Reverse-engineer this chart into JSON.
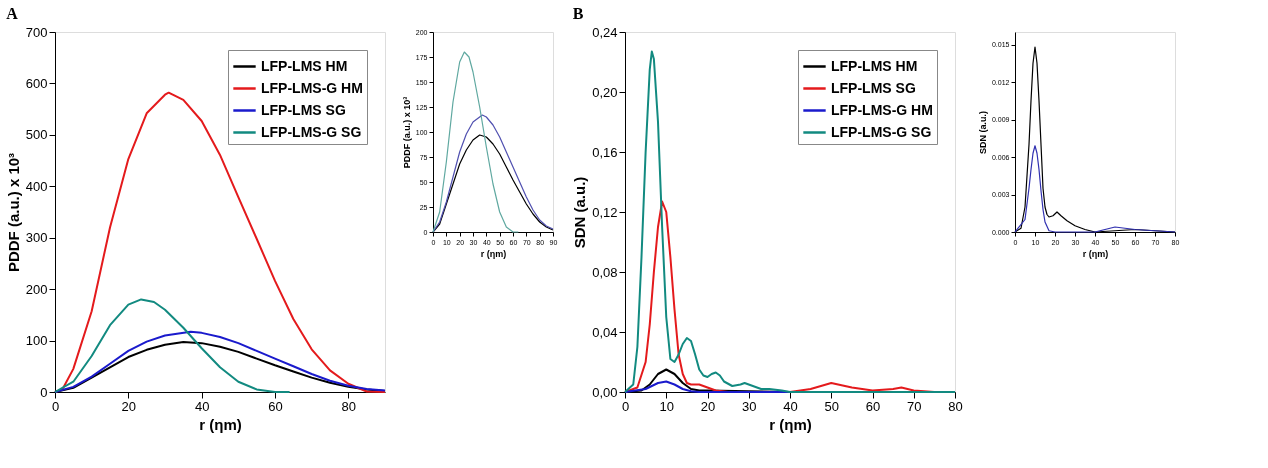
{
  "chart_data": [
    {
      "type": "line",
      "title": "A",
      "xlabel": "r (ηm)",
      "ylabel": "PDDF (a.u.) x 10³",
      "xlim": [
        0,
        90
      ],
      "xticks": [
        0,
        20,
        40,
        60,
        80
      ],
      "ylim": [
        0,
        700
      ],
      "yticks": [
        0,
        100,
        200,
        300,
        400,
        500,
        600,
        700
      ],
      "grid": false,
      "legend": "top right",
      "series": [
        {
          "name": "LFP-LMS HM",
          "color": "#000000",
          "x": [
            0,
            5,
            10,
            15,
            20,
            25,
            30,
            35,
            40,
            45,
            50,
            55,
            60,
            65,
            70,
            75,
            80,
            85,
            90
          ],
          "values": [
            0,
            8,
            28,
            48,
            68,
            82,
            92,
            97,
            95,
            88,
            78,
            65,
            52,
            40,
            28,
            18,
            10,
            5,
            2
          ]
        },
        {
          "name": "LFP-LMS-G HM",
          "color": "#e41a1c",
          "x": [
            0,
            2,
            5,
            10,
            15,
            20,
            25,
            30,
            31,
            35,
            40,
            45,
            50,
            55,
            60,
            65,
            70,
            75,
            80,
            85,
            90
          ],
          "values": [
            0,
            5,
            45,
            157,
            320,
            453,
            542,
            578,
            582,
            568,
            527,
            461,
            379,
            298,
            216,
            142,
            83,
            42,
            16,
            1,
            0
          ]
        },
        {
          "name": "LFP-LMS SG",
          "color": "#1a1acc",
          "x": [
            0,
            5,
            10,
            15,
            20,
            25,
            30,
            37,
            40,
            45,
            50,
            55,
            60,
            65,
            70,
            75,
            80,
            85,
            90
          ],
          "values": [
            0,
            10,
            30,
            55,
            80,
            98,
            110,
            117,
            115,
            107,
            95,
            80,
            65,
            50,
            35,
            22,
            12,
            6,
            3
          ]
        },
        {
          "name": "LFP-LMS-G SG",
          "color": "#128a80",
          "x": [
            0,
            5,
            10,
            15,
            20,
            23.5,
            27,
            30,
            35,
            40,
            45,
            50,
            55,
            60,
            64
          ],
          "values": [
            0,
            20,
            70,
            130,
            170,
            180,
            175,
            160,
            125,
            85,
            48,
            20,
            5,
            0,
            0
          ]
        }
      ]
    },
    {
      "type": "line",
      "xlabel": "r (ηm)",
      "ylabel": "PDDF (a.u.) x 10³",
      "xlim": [
        0,
        90
      ],
      "xticks": [
        0,
        10,
        20,
        30,
        40,
        50,
        60,
        70,
        80,
        90
      ],
      "ylim": [
        0,
        200
      ],
      "yticks": [
        0,
        25,
        50,
        75,
        100,
        125,
        150,
        175,
        200
      ],
      "grid": false,
      "series": [
        {
          "color": "#000000",
          "x": [
            0,
            5,
            10,
            15,
            20,
            25,
            30,
            35,
            40,
            45,
            50,
            55,
            60,
            65,
            70,
            75,
            80,
            85,
            90
          ],
          "values": [
            0,
            8,
            28,
            48,
            68,
            82,
            92,
            97,
            95,
            88,
            78,
            65,
            52,
            40,
            28,
            18,
            10,
            5,
            2
          ]
        },
        {
          "color": "#5050b0",
          "x": [
            0,
            5,
            10,
            15,
            20,
            25,
            30,
            37,
            40,
            45,
            50,
            55,
            60,
            65,
            70,
            75,
            80,
            85,
            90
          ],
          "values": [
            0,
            10,
            30,
            55,
            80,
            98,
            110,
            117,
            115,
            107,
            95,
            80,
            65,
            50,
            35,
            22,
            12,
            6,
            3
          ]
        },
        {
          "color": "#5fa8a0",
          "x": [
            0,
            5,
            10,
            15,
            20,
            23.5,
            27,
            30,
            35,
            40,
            45,
            50,
            55,
            60,
            64
          ],
          "values": [
            0,
            20,
            70,
            130,
            170,
            180,
            175,
            160,
            125,
            85,
            48,
            20,
            5,
            0,
            0
          ]
        }
      ]
    },
    {
      "type": "line",
      "title": "B",
      "xlabel": "r (ηm)",
      "ylabel": "SDN (a.u.)",
      "xlim": [
        0,
        80
      ],
      "xticks": [
        0,
        10,
        20,
        30,
        40,
        50,
        60,
        70,
        80
      ],
      "ylim": [
        0,
        0.24
      ],
      "yticks": [
        {
          "value": 0,
          "label": "0,00"
        },
        {
          "value": 0.04,
          "label": "0,04"
        },
        {
          "value": 0.08,
          "label": "0,08"
        },
        {
          "value": 0.12,
          "label": "0,12"
        },
        {
          "value": 0.16,
          "label": "0,16"
        },
        {
          "value": 0.2,
          "label": "0,20"
        },
        {
          "value": 0.24,
          "label": "0,24"
        }
      ],
      "grid": false,
      "legend": "top right",
      "series": [
        {
          "name": "LFP-LMS HM",
          "color": "#000000",
          "x": [
            0,
            4,
            6,
            8,
            10,
            12,
            14,
            16,
            18,
            20,
            30,
            40,
            80
          ],
          "values": [
            0,
            0.001,
            0.005,
            0.012,
            0.015,
            0.012,
            0.006,
            0.002,
            0.001,
            0.001,
            0.0005,
            0,
            0
          ]
        },
        {
          "name": "LFP-LMS SG",
          "color": "#e41a1c",
          "x": [
            0,
            3,
            5,
            6,
            7,
            8,
            9,
            10,
            11,
            12,
            13,
            14,
            15,
            16,
            18,
            20,
            22,
            25,
            40,
            45,
            50,
            55,
            60,
            65,
            67,
            70,
            75,
            80
          ],
          "values": [
            0,
            0.003,
            0.02,
            0.045,
            0.08,
            0.11,
            0.127,
            0.12,
            0.09,
            0.055,
            0.025,
            0.012,
            0.006,
            0.005,
            0.005,
            0.003,
            0.001,
            0,
            0,
            0.002,
            0.006,
            0.003,
            0.001,
            0.002,
            0.003,
            0.001,
            0,
            0
          ]
        },
        {
          "name": "LFP-LMS-G HM",
          "color": "#1a1acc",
          "x": [
            0,
            5,
            8,
            10,
            12,
            14,
            16,
            18,
            80
          ],
          "values": [
            0,
            0.002,
            0.006,
            0.007,
            0.005,
            0.002,
            0.0005,
            0,
            0
          ]
        },
        {
          "name": "LFP-LMS-G SG",
          "color": "#128a80",
          "x": [
            0,
            2,
            3,
            4,
            5,
            6,
            6.5,
            7,
            8,
            9,
            10,
            11,
            12,
            13,
            14,
            15,
            16,
            17,
            18,
            19,
            20,
            21,
            22,
            23,
            24,
            26,
            28,
            29,
            31,
            33,
            35,
            38,
            40,
            45,
            80
          ],
          "values": [
            0,
            0.005,
            0.03,
            0.09,
            0.16,
            0.215,
            0.227,
            0.222,
            0.18,
            0.11,
            0.05,
            0.022,
            0.02,
            0.025,
            0.032,
            0.036,
            0.034,
            0.025,
            0.015,
            0.011,
            0.01,
            0.012,
            0.013,
            0.011,
            0.007,
            0.004,
            0.005,
            0.006,
            0.004,
            0.002,
            0.002,
            0.001,
            0,
            0,
            0
          ]
        }
      ]
    },
    {
      "type": "line",
      "xlabel": "r (ηm)",
      "ylabel": "SDN (a.u.)",
      "xlim": [
        0,
        80
      ],
      "xticks": [
        0,
        10,
        20,
        30,
        40,
        50,
        60,
        70,
        80
      ],
      "ylim": [
        0,
        0.016
      ],
      "yticks": [
        {
          "value": 0,
          "label": "0.000"
        },
        {
          "value": 0.003,
          "label": "0.003"
        },
        {
          "value": 0.006,
          "label": "0.006"
        },
        {
          "value": 0.009,
          "label": "0.009"
        },
        {
          "value": 0.012,
          "label": "0.012"
        },
        {
          "value": 0.015,
          "label": "0.015"
        }
      ],
      "grid": false,
      "series": [
        {
          "color": "#000000",
          "x": [
            0,
            3,
            5,
            7,
            8,
            9,
            10,
            11,
            12,
            13,
            14,
            15,
            16,
            17,
            19,
            21,
            23,
            26,
            30,
            35,
            40,
            50,
            60,
            70,
            80
          ],
          "values": [
            0,
            0.0003,
            0.002,
            0.007,
            0.0105,
            0.0135,
            0.0148,
            0.0135,
            0.0105,
            0.007,
            0.0035,
            0.002,
            0.0014,
            0.0012,
            0.0013,
            0.0016,
            0.0013,
            0.0009,
            0.0005,
            0.0002,
            0,
            0.0001,
            0.0002,
            0.0001,
            0
          ]
        },
        {
          "color": "#3030b0",
          "x": [
            0,
            5,
            7,
            8,
            9,
            10,
            11,
            12,
            13,
            14,
            15,
            17,
            20,
            40,
            45,
            50,
            55,
            60,
            70,
            80
          ],
          "values": [
            0,
            0.001,
            0.0035,
            0.005,
            0.0063,
            0.0069,
            0.0063,
            0.005,
            0.0033,
            0.0018,
            0.0008,
            0.0001,
            0,
            0,
            0.0002,
            0.0004,
            0.0003,
            0.0002,
            0.0001,
            0
          ]
        }
      ]
    }
  ]
}
